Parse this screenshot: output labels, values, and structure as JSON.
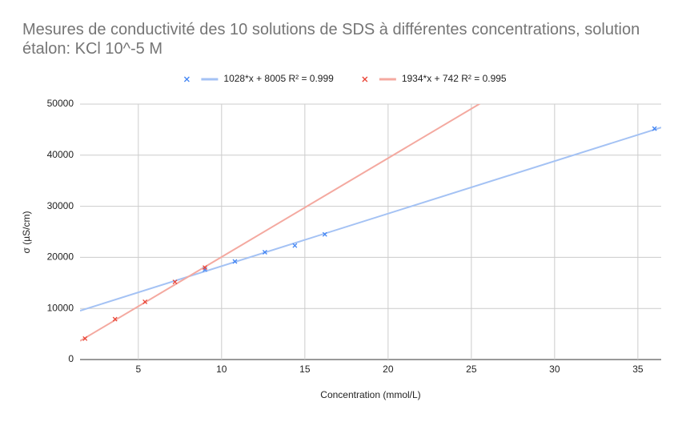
{
  "chart_data": {
    "type": "scatter",
    "title": "Mesures de conductivité des 10 solutions de SDS à différentes concentrations, solution étalon: KCl 10^-5 M",
    "x_label": "Concentration (mmol/L)",
    "y_label": "σ (µS/cm)",
    "series": [
      {
        "name": "1028*x + 8005 R² = 0.999",
        "color": "#4285f4",
        "trendline_color": "#a4c2f4",
        "x": [
          9,
          10.8,
          12.6,
          14.4,
          16.2,
          36
        ],
        "values": [
          17600,
          19200,
          21000,
          22300,
          24500,
          45200
        ],
        "trendline": {
          "slope": 1028,
          "intercept": 8005
        }
      },
      {
        "name": "1934*x + 742 R² = 0.995",
        "color": "#ea4335",
        "trendline_color": "#f4a9a0",
        "x": [
          1.8,
          3.6,
          5.4,
          7.2,
          9.0
        ],
        "values": [
          4100,
          7900,
          11300,
          15200,
          18000
        ],
        "trendline": {
          "slope": 1934,
          "intercept": 742
        }
      }
    ],
    "xlim": [
      1.5,
      36.4
    ],
    "xticks": [
      5,
      10,
      15,
      20,
      25,
      30,
      35
    ],
    "ylim": [
      0,
      50000
    ],
    "yticks": [
      0,
      10000,
      20000,
      30000,
      40000,
      50000
    ],
    "grid": true,
    "legend": "top"
  }
}
